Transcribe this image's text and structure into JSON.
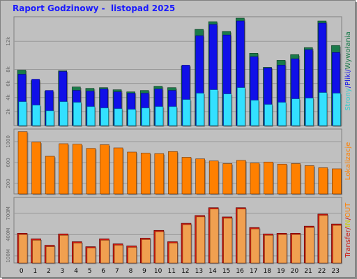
{
  "title": "Raport Godzinowy -  listopad 2025",
  "colors": {
    "background": "#c0c0c0",
    "plot_bg": "#c0c0c0",
    "grid": "#999999",
    "hits": "#1a7a4a",
    "files": "#1010e8",
    "pages": "#33e0ff",
    "visits": "#ff8000",
    "kbytes": "#cc1a10",
    "kbytes_fill": "#f0a050",
    "title": "#1a1aff"
  },
  "chart_data": [
    {
      "type": "bar",
      "categories": [
        "0",
        "1",
        "2",
        "3",
        "4",
        "5",
        "6",
        "7",
        "8",
        "9",
        "10",
        "11",
        "12",
        "13",
        "14",
        "15",
        "16",
        "17",
        "18",
        "19",
        "20",
        "21",
        "22",
        "23"
      ],
      "ylim": [
        0,
        15500
      ],
      "yticks": [
        {
          "value": 2000,
          "label": "2k"
        },
        {
          "value": 4000,
          "label": "4k"
        },
        {
          "value": 6000,
          "label": "6k"
        },
        {
          "value": 8000,
          "label": "8k"
        },
        {
          "value": 12000,
          "label": "12k"
        }
      ],
      "legend": [
        {
          "text": "Strony",
          "color": "#33cccc"
        },
        {
          "text": "/",
          "color": "#1010e8"
        },
        {
          "text": "Pliki",
          "color": "#1010e8"
        },
        {
          "text": "/",
          "color": "#1010e8"
        },
        {
          "text": "Wywołania",
          "color": "#1a7a4a"
        }
      ],
      "series": [
        {
          "name": "Wywołania",
          "values": [
            7900,
            6400,
            4900,
            7800,
            5500,
            5300,
            5400,
            5100,
            4800,
            5000,
            5600,
            5400,
            8500,
            13700,
            14800,
            13400,
            15300,
            10300,
            8300,
            9300,
            10100,
            11100,
            14900,
            11400
          ]
        },
        {
          "name": "Pliki",
          "values": [
            7300,
            6600,
            5000,
            7700,
            5000,
            4900,
            5200,
            4800,
            4600,
            4600,
            5200,
            5000,
            8600,
            12800,
            14400,
            12900,
            14900,
            9800,
            8200,
            8600,
            9500,
            10800,
            14600,
            10400
          ]
        },
        {
          "name": "Strony",
          "values": [
            3400,
            2900,
            2100,
            3400,
            3300,
            2700,
            2500,
            2400,
            2300,
            2500,
            2700,
            2700,
            3700,
            4600,
            5100,
            4500,
            5400,
            3600,
            3000,
            3300,
            3800,
            3900,
            4700,
            4600
          ]
        }
      ]
    },
    {
      "type": "bar",
      "categories": [
        "0",
        "1",
        "2",
        "3",
        "4",
        "5",
        "6",
        "7",
        "8",
        "9",
        "10",
        "11",
        "12",
        "13",
        "14",
        "15",
        "16",
        "17",
        "18",
        "19",
        "20",
        "21",
        "22",
        "23"
      ],
      "ylim": [
        0,
        1240
      ],
      "yticks": [
        {
          "value": 200,
          "label": "200"
        },
        {
          "value": 600,
          "label": "600"
        },
        {
          "value": 1000,
          "label": "1000"
        }
      ],
      "legend": [
        {
          "text": "Lokalizacje",
          "color": "#ff8000"
        }
      ],
      "series": [
        {
          "name": "Lokalizacje",
          "values": [
            1190,
            990,
            720,
            960,
            950,
            870,
            940,
            880,
            800,
            780,
            770,
            810,
            700,
            670,
            630,
            580,
            640,
            590,
            610,
            570,
            580,
            540,
            500,
            480
          ]
        }
      ]
    },
    {
      "type": "bar",
      "categories": [
        "0",
        "1",
        "2",
        "3",
        "4",
        "5",
        "6",
        "7",
        "8",
        "9",
        "10",
        "11",
        "12",
        "13",
        "14",
        "15",
        "16",
        "17",
        "18",
        "19",
        "20",
        "21",
        "22",
        "23"
      ],
      "ylim": [
        0,
        925
      ],
      "yticks": [
        {
          "value": 100,
          "label": "100M"
        },
        {
          "value": 400,
          "label": "400M"
        },
        {
          "value": 700,
          "label": "700M"
        }
      ],
      "legend": [
        {
          "text": "Transfer",
          "color": "#cc1a10"
        },
        {
          "text": "/",
          "color": "#cc1a10"
        },
        {
          "text": "IN",
          "color": "#cccc00"
        },
        {
          "text": "/",
          "color": "#cc1a10"
        },
        {
          "text": "OUT",
          "color": "#ff8000"
        }
      ],
      "series": [
        {
          "name": "Transfer",
          "values": [
            420,
            340,
            250,
            410,
            300,
            230,
            340,
            270,
            240,
            350,
            460,
            300,
            560,
            670,
            780,
            650,
            780,
            500,
            410,
            420,
            420,
            520,
            690,
            550
          ]
        }
      ]
    }
  ]
}
